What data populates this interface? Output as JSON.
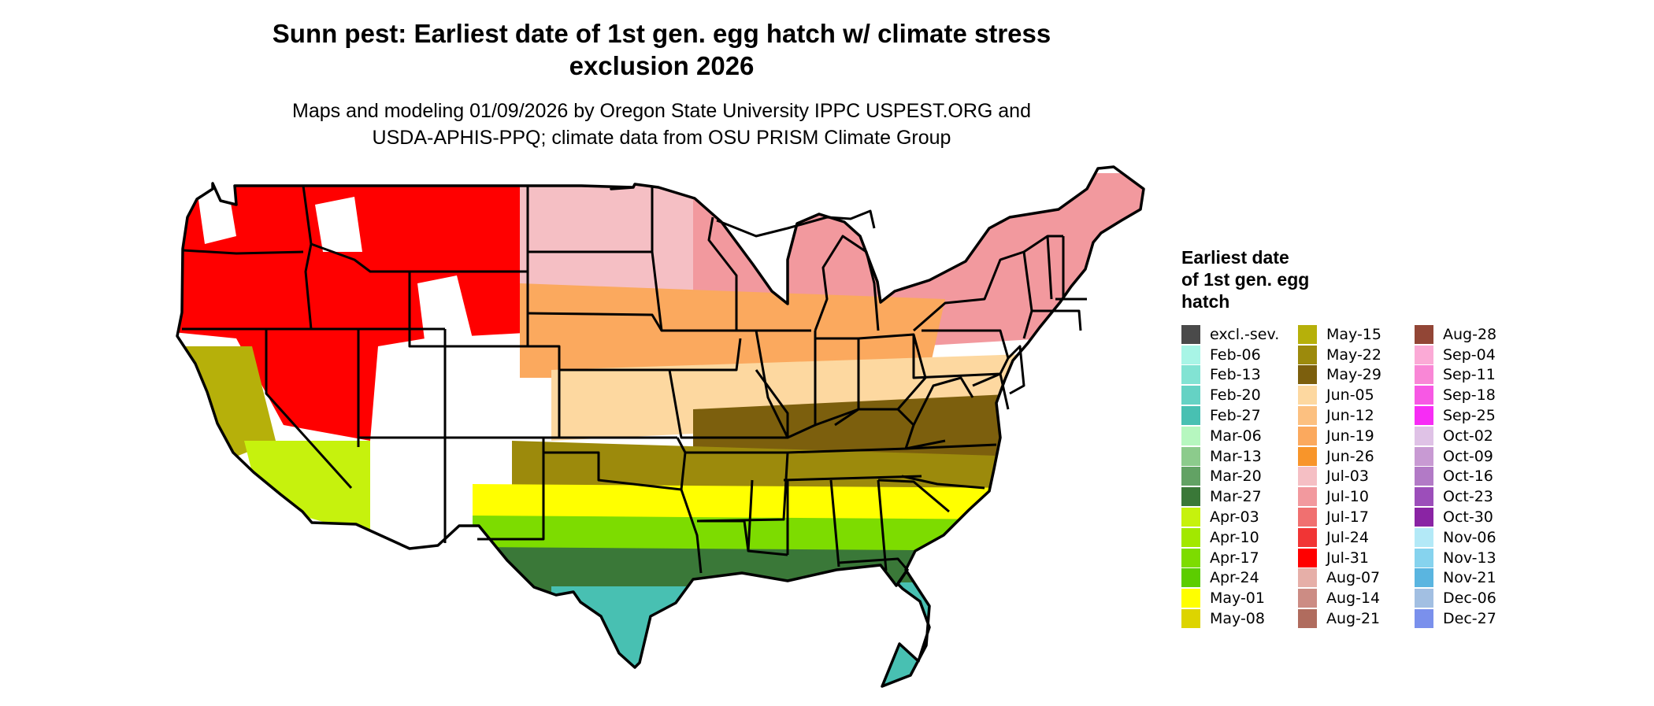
{
  "title": "Sunn pest: Earliest date of 1st gen. egg hatch w/ climate stress\nexclusion 2026",
  "title_line1": "Sunn pest: Earliest date of 1st gen. egg hatch w/ climate stress",
  "title_line2": "exclusion 2026",
  "subtitle_line1": "Maps and modeling 01/09/2026 by Oregon State University IPPC USPEST.ORG and",
  "subtitle_line2": "USDA-APHIS-PPQ; climate data from OSU PRISM Climate Group",
  "map": {
    "region": "Contiguous United States",
    "boundary_color": "#000000",
    "zones": [
      {
        "name": "northwest-mountains",
        "legend_label": "Jul-31",
        "color": "#ff0000"
      },
      {
        "name": "northern-plains",
        "legend_label": "Jul-03",
        "color": "#f5bfc4"
      },
      {
        "name": "northern-tier-east",
        "legend_label": "Jul-10",
        "color": "#f2999e"
      },
      {
        "name": "central-plains",
        "legend_label": "Jun-19",
        "color": "#fba95e"
      },
      {
        "name": "mid-latitude",
        "legend_label": "Jun-05",
        "color": "#fdd8a0"
      },
      {
        "name": "upper-south",
        "legend_label": "May-29",
        "color": "#7c5f0d"
      },
      {
        "name": "middle-south",
        "legend_label": "May-22",
        "color": "#9c8a0c"
      },
      {
        "name": "southern-band",
        "legend_label": "May-01",
        "color": "#ffff00"
      },
      {
        "name": "gulf-interior",
        "legend_label": "Apr-17",
        "color": "#7ddc00"
      },
      {
        "name": "gulf-coast",
        "legend_label": "Mar-27",
        "color": "#3a7838"
      },
      {
        "name": "south-texas-florida",
        "legend_label": "Feb-27",
        "color": "#48c0b2"
      },
      {
        "name": "central-valley",
        "legend_label": "May-15",
        "color": "#b6b00a"
      },
      {
        "name": "desert-southwest",
        "legend_label": "Apr-03",
        "color": "#c6f20d"
      },
      {
        "name": "high-peaks",
        "legend_label": "",
        "color": "#ffffff"
      }
    ]
  },
  "legend": {
    "title": "Earliest date\nof 1st gen. egg\nhatch",
    "items": [
      {
        "label": "excl.-sev.",
        "color": "#4a4a4a"
      },
      {
        "label": "Feb-06",
        "color": "#a8f5e6"
      },
      {
        "label": "Feb-13",
        "color": "#82e3d3"
      },
      {
        "label": "Feb-20",
        "color": "#65d2c4"
      },
      {
        "label": "Feb-27",
        "color": "#48c0b2"
      },
      {
        "label": "Mar-06",
        "color": "#b6f7bf"
      },
      {
        "label": "Mar-13",
        "color": "#8ccb8c"
      },
      {
        "label": "Mar-20",
        "color": "#62a264"
      },
      {
        "label": "Mar-27",
        "color": "#3a7838"
      },
      {
        "label": "Apr-03",
        "color": "#c6f20d"
      },
      {
        "label": "Apr-10",
        "color": "#a2e800"
      },
      {
        "label": "Apr-17",
        "color": "#7ddc00"
      },
      {
        "label": "Apr-24",
        "color": "#5ccd00"
      },
      {
        "label": "May-01",
        "color": "#ffff00"
      },
      {
        "label": "May-08",
        "color": "#ddd400"
      },
      {
        "label": "May-15",
        "color": "#b6b00a"
      },
      {
        "label": "May-22",
        "color": "#9c8a0c"
      },
      {
        "label": "May-29",
        "color": "#7c5f0d"
      },
      {
        "label": "Jun-05",
        "color": "#fdd8a0"
      },
      {
        "label": "Jun-12",
        "color": "#fcc080"
      },
      {
        "label": "Jun-19",
        "color": "#fba95e"
      },
      {
        "label": "Jun-26",
        "color": "#f8952a"
      },
      {
        "label": "Jul-03",
        "color": "#f5bfc4"
      },
      {
        "label": "Jul-10",
        "color": "#f2999e"
      },
      {
        "label": "Jul-17",
        "color": "#f07070"
      },
      {
        "label": "Jul-24",
        "color": "#f13535"
      },
      {
        "label": "Jul-31",
        "color": "#ff0000"
      },
      {
        "label": "Aug-07",
        "color": "#e6afa8"
      },
      {
        "label": "Aug-14",
        "color": "#cc8c84"
      },
      {
        "label": "Aug-21",
        "color": "#b06c5e"
      },
      {
        "label": "Aug-28",
        "color": "#924636"
      },
      {
        "label": "Sep-04",
        "color": "#fbaad6"
      },
      {
        "label": "Sep-11",
        "color": "#f987d6"
      },
      {
        "label": "Sep-18",
        "color": "#f758e4"
      },
      {
        "label": "Sep-25",
        "color": "#f72cf5"
      },
      {
        "label": "Oct-02",
        "color": "#dfc2e6"
      },
      {
        "label": "Oct-09",
        "color": "#c89ad3"
      },
      {
        "label": "Oct-16",
        "color": "#b27ac6"
      },
      {
        "label": "Oct-23",
        "color": "#9c4eba"
      },
      {
        "label": "Oct-30",
        "color": "#8a24a4"
      },
      {
        "label": "Nov-06",
        "color": "#b3e9f7"
      },
      {
        "label": "Nov-13",
        "color": "#86d3ee"
      },
      {
        "label": "Nov-21",
        "color": "#5ab5e0"
      },
      {
        "label": "Dec-06",
        "color": "#a2bfe2"
      },
      {
        "label": "Dec-27",
        "color": "#7a90ec"
      }
    ]
  }
}
